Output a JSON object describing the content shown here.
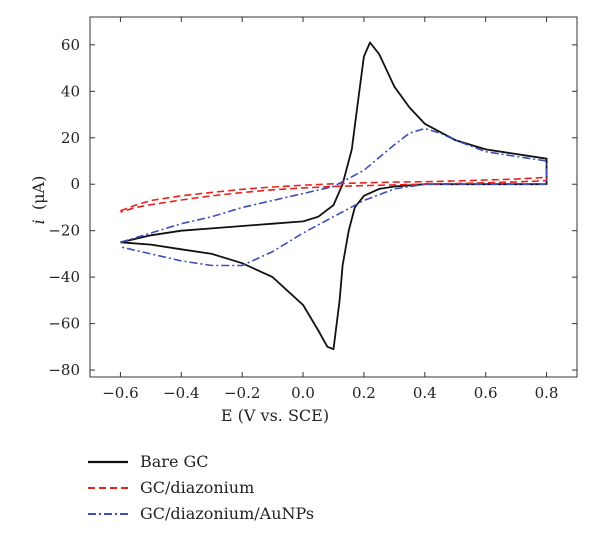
{
  "chart_data": {
    "type": "line",
    "title": "",
    "xlabel": "E (V vs. SCE)",
    "ylabel_italic": "i",
    "ylabel_unit": "(μA)",
    "xlim": [
      -0.7,
      0.9
    ],
    "ylim": [
      -83,
      72
    ],
    "x_ticks": [
      -0.6,
      -0.4,
      -0.2,
      0.0,
      0.2,
      0.4,
      0.6,
      0.8
    ],
    "x_tick_labels": [
      "−0.6",
      "−0.4",
      "−0.2",
      "0.0",
      "0.2",
      "0.4",
      "0.6",
      "0.8"
    ],
    "y_ticks": [
      -80,
      -60,
      -40,
      -20,
      0,
      20,
      40,
      60
    ],
    "y_tick_labels": [
      "−80",
      "−60",
      "−40",
      "−20",
      "0",
      "20",
      "40",
      "60"
    ],
    "grid": false,
    "legend_position": "below-left",
    "series": [
      {
        "name": "Bare GC",
        "color": "#111111",
        "dash": "solid",
        "x": [
          -0.6,
          -0.5,
          -0.4,
          -0.3,
          -0.2,
          -0.1,
          0.0,
          0.05,
          0.1,
          0.13,
          0.16,
          0.18,
          0.2,
          0.22,
          0.25,
          0.3,
          0.35,
          0.4,
          0.5,
          0.6,
          0.7,
          0.8,
          0.8,
          0.7,
          0.6,
          0.5,
          0.4,
          0.3,
          0.25,
          0.2,
          0.17,
          0.15,
          0.13,
          0.12,
          0.1,
          0.08,
          0.05,
          0.0,
          -0.05,
          -0.1,
          -0.2,
          -0.3,
          -0.4,
          -0.5,
          -0.6
        ],
        "y": [
          -25,
          -22,
          -20,
          -19,
          -18,
          -17,
          -16,
          -14,
          -9,
          0,
          15,
          35,
          55,
          61,
          56,
          42,
          33,
          26,
          19,
          15,
          13,
          11,
          0,
          0,
          0,
          0,
          0,
          -1,
          -2,
          -5,
          -10,
          -20,
          -35,
          -50,
          -71,
          -70,
          -63,
          -52,
          -46,
          -40,
          -34,
          -30,
          -28,
          -26,
          -25
        ]
      },
      {
        "name": "GC/diazonium",
        "color": "#e8231e",
        "dash": "dashed",
        "x": [
          -0.6,
          -0.55,
          -0.5,
          -0.4,
          -0.3,
          -0.2,
          -0.1,
          0.0,
          0.1,
          0.2,
          0.3,
          0.4,
          0.5,
          0.6,
          0.7,
          0.8,
          0.8,
          0.7,
          0.6,
          0.5,
          0.4,
          0.3,
          0.2,
          0.1,
          0.0,
          -0.1,
          -0.2,
          -0.3,
          -0.4,
          -0.5,
          -0.55,
          -0.6
        ],
        "y": [
          -11.5,
          -9,
          -7,
          -5,
          -3.5,
          -2.2,
          -1.2,
          -0.4,
          0.2,
          0.6,
          0.9,
          1.1,
          1.4,
          1.8,
          2.2,
          3,
          1.5,
          1,
          0.6,
          0.3,
          0,
          -0.3,
          -0.6,
          -1,
          -1.6,
          -2.4,
          -3.6,
          -5,
          -6.8,
          -8.8,
          -10,
          -12
        ]
      },
      {
        "name": "GC/diazonium/AuNPs",
        "color": "#3b4fb8",
        "dash": "dashdot",
        "x": [
          -0.6,
          -0.5,
          -0.4,
          -0.3,
          -0.2,
          -0.1,
          0.0,
          0.1,
          0.2,
          0.3,
          0.35,
          0.4,
          0.45,
          0.5,
          0.6,
          0.7,
          0.8,
          0.8,
          0.7,
          0.6,
          0.5,
          0.4,
          0.3,
          0.2,
          0.1,
          0.0,
          -0.1,
          -0.2,
          -0.3,
          -0.4,
          -0.5,
          -0.6
        ],
        "y": [
          -25,
          -21,
          -17,
          -14,
          -10,
          -7,
          -4,
          -1,
          6,
          17,
          22,
          24,
          22,
          19,
          14,
          12,
          10,
          0,
          0,
          0,
          0,
          0,
          -2,
          -7,
          -14,
          -21,
          -29,
          -35,
          -35,
          -33,
          -30,
          -27
        ]
      }
    ]
  }
}
